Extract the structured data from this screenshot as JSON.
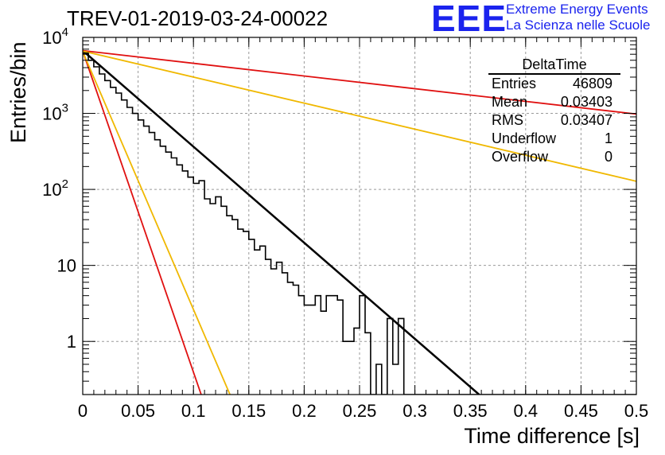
{
  "header": {
    "title": "TREV-01-2019-03-24-00022",
    "logo": "EEE",
    "logo_line1": "Extreme Energy Events",
    "logo_line2": "La Scienza nelle Scuole"
  },
  "stats_box": {
    "title": "DeltaTime",
    "rows": [
      {
        "label": "Entries",
        "value": "46809"
      },
      {
        "label": "Mean",
        "value": "0.03403"
      },
      {
        "label": "RMS",
        "value": "0.03407"
      },
      {
        "label": "Underflow",
        "value": "1"
      },
      {
        "label": "Overflow",
        "value": "0"
      }
    ]
  },
  "chart_data": {
    "type": "line",
    "xlabel": "Time difference [s]",
    "ylabel": "Entries/bin",
    "xlim": [
      0,
      0.5
    ],
    "ylim": [
      0.2,
      10000
    ],
    "y_scale": "log",
    "grid": true,
    "x_ticks": [
      "0",
      "0.05",
      "0.1",
      "0.15",
      "0.2",
      "0.25",
      "0.3",
      "0.35",
      "0.4",
      "0.45",
      "0.5"
    ],
    "y_ticks": [
      {
        "value": 1,
        "label": "1"
      },
      {
        "value": 10,
        "label": "10"
      },
      {
        "value": 100,
        "label": "10^2"
      },
      {
        "value": 1000,
        "label": "10^3"
      },
      {
        "value": 10000,
        "label": "10^4"
      }
    ],
    "histogram": {
      "color": "#000000",
      "bin_width": 0.005,
      "bin_start": 0,
      "values": [
        6200,
        5000,
        4100,
        3300,
        2700,
        2200,
        1850,
        1500,
        1200,
        1000,
        820,
        680,
        560,
        450,
        370,
        310,
        260,
        210,
        175,
        145,
        120,
        130,
        75,
        65,
        80,
        60,
        45,
        40,
        30,
        28,
        22,
        16,
        18,
        12,
        9,
        11,
        8,
        6,
        5.5,
        4,
        3,
        3,
        4,
        2.5,
        4,
        4,
        3.5,
        1,
        1,
        1.5,
        4,
        1.3,
        0.2,
        0.5,
        0.2,
        2,
        0.5,
        2,
        0.2,
        0.2,
        0.2,
        0.2,
        0.2,
        0.2,
        0.2,
        0.2,
        0.2,
        0.2,
        0.2,
        0.2,
        0.2,
        0.2,
        0.2,
        0.2,
        0.2,
        0.2,
        0.2,
        0.2,
        0.2,
        0.2,
        0.2,
        0.2,
        0.2,
        0.2,
        0.2,
        0.2,
        0.2,
        0.2,
        0.2,
        0.2,
        0.2,
        0.2,
        0.2,
        0.2,
        0.2,
        0.2,
        0.2,
        0.2,
        0.2,
        0.2
      ]
    },
    "series": [
      {
        "color": "#000000",
        "points": [
          [
            0,
            6700
          ],
          [
            0.358,
            0.2
          ]
        ]
      },
      {
        "color": "#e01010",
        "points": [
          [
            0,
            6700
          ],
          [
            0.5,
            980
          ]
        ]
      },
      {
        "color": "#f0b800",
        "points": [
          [
            0,
            6600
          ],
          [
            0.5,
            128
          ]
        ]
      },
      {
        "color": "#e01010",
        "points": [
          [
            0,
            6600
          ],
          [
            0.107,
            0.2
          ]
        ]
      },
      {
        "color": "#f0b800",
        "points": [
          [
            0,
            6500
          ],
          [
            0.133,
            0.2
          ]
        ]
      }
    ]
  }
}
